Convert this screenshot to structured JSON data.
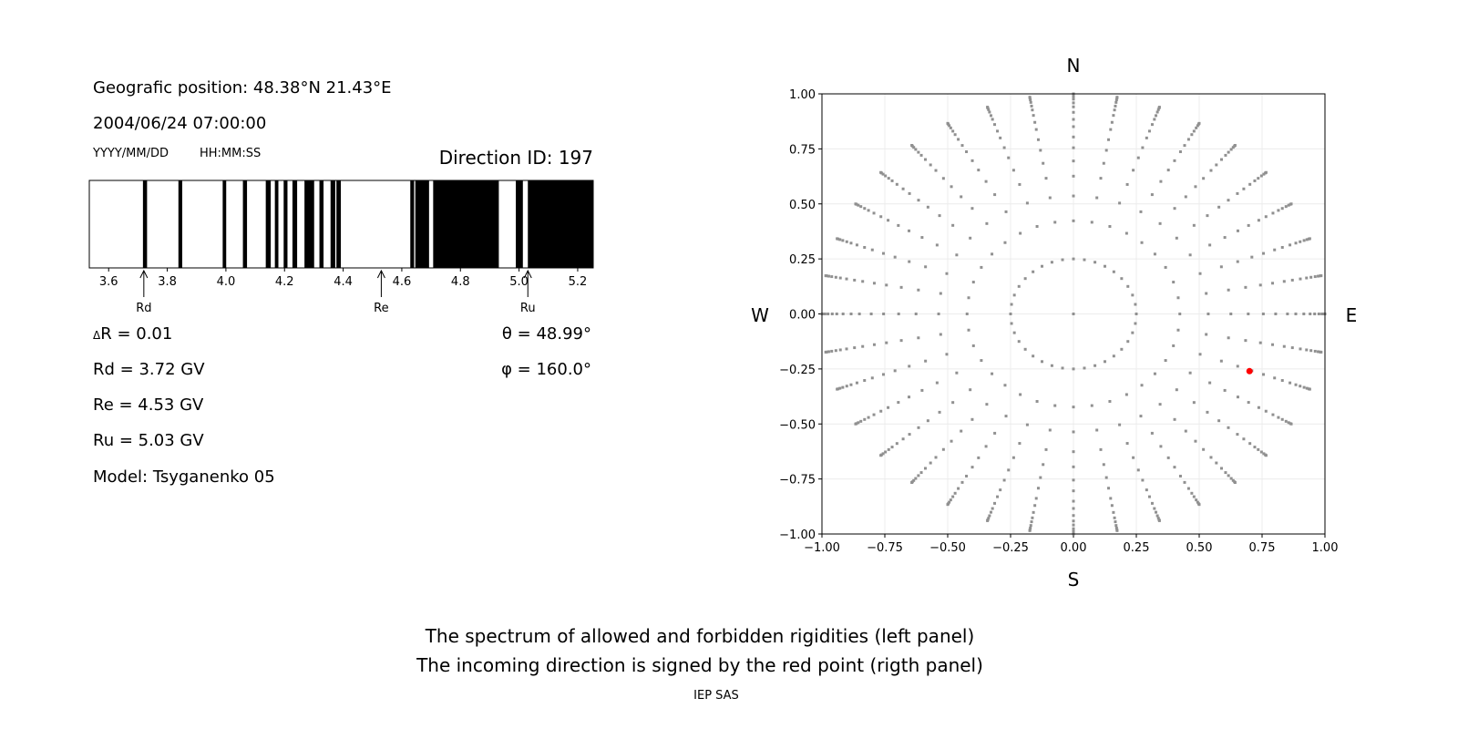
{
  "left_panel": {
    "position": "Geografic position: 48.38°N 21.43°E",
    "datetime": "2004/06/24 07:00:00",
    "date_format": "YYYY/MM/DD",
    "time_format": "HH:MM:SS",
    "direction_id": "Direction ID: 197",
    "delta_r": "R = 0.01",
    "delta_symbol": "Δ",
    "rd": "Rd = 3.72 GV",
    "re": "Re = 4.53 GV",
    "ru": "Ru = 5.03 GV",
    "model": "Model: Tsyganenko 05",
    "theta": "θ = 48.99°",
    "phi": "φ = 160.0°"
  },
  "captions": {
    "line1": "The spectrum of allowed and forbidden rigidities (left panel)",
    "line2": "The incoming direction is signed by the red point (rigth panel)",
    "credit": "IEP SAS"
  },
  "chart_data": [
    {
      "type": "bar",
      "xlim": [
        3.534,
        5.253
      ],
      "xticks": [
        "3.6",
        "3.8",
        "4.0",
        "4.2",
        "4.4",
        "4.6",
        "4.8",
        "5.0",
        "5.2"
      ],
      "forbidden_intervals": [
        [
          3.717,
          3.731
        ],
        [
          3.838,
          3.851
        ],
        [
          3.989,
          4.001
        ],
        [
          4.058,
          4.072
        ],
        [
          4.136,
          4.153
        ],
        [
          4.167,
          4.179
        ],
        [
          4.197,
          4.21
        ],
        [
          4.227,
          4.243
        ],
        [
          4.268,
          4.301
        ],
        [
          4.319,
          4.333
        ],
        [
          4.357,
          4.373
        ],
        [
          4.377,
          4.392
        ],
        [
          4.629,
          4.642
        ],
        [
          4.646,
          4.693
        ],
        [
          4.707,
          4.931
        ],
        [
          4.989,
          5.013
        ],
        [
          5.03,
          5.253
        ]
      ],
      "markers": [
        {
          "label": "Rd",
          "value": 3.72
        },
        {
          "label": "Re",
          "value": 4.53
        },
        {
          "label": "Ru",
          "value": 5.03
        }
      ],
      "colors": {
        "forbidden": "#000000",
        "allowed": "#ffffff"
      }
    },
    {
      "type": "scatter",
      "xlim": [
        -1,
        1
      ],
      "ylim": [
        -1,
        1
      ],
      "ticks": [
        "−1.00",
        "−0.75",
        "−0.50",
        "−0.25",
        "0.00",
        "0.25",
        "0.50",
        "0.75",
        "1.00"
      ],
      "grid": true,
      "compass": {
        "n": "N",
        "s": "S",
        "w": "W",
        "e": "E"
      },
      "center_point": [
        0,
        0
      ],
      "inner_ring_radius": 0.25,
      "inner_ring_azimuth_step_deg": 10,
      "ray_azimuth_step_deg": 10,
      "ray_radii": [
        0.423,
        0.536,
        0.626,
        0.695,
        0.755,
        0.804,
        0.851,
        0.884,
        0.916,
        0.941,
        0.959,
        0.976,
        0.988,
        0.996,
        1.0
      ],
      "grid_color": "#909090",
      "highlight": {
        "x": 0.7,
        "y": -0.26,
        "color": "#ff0000"
      }
    }
  ]
}
